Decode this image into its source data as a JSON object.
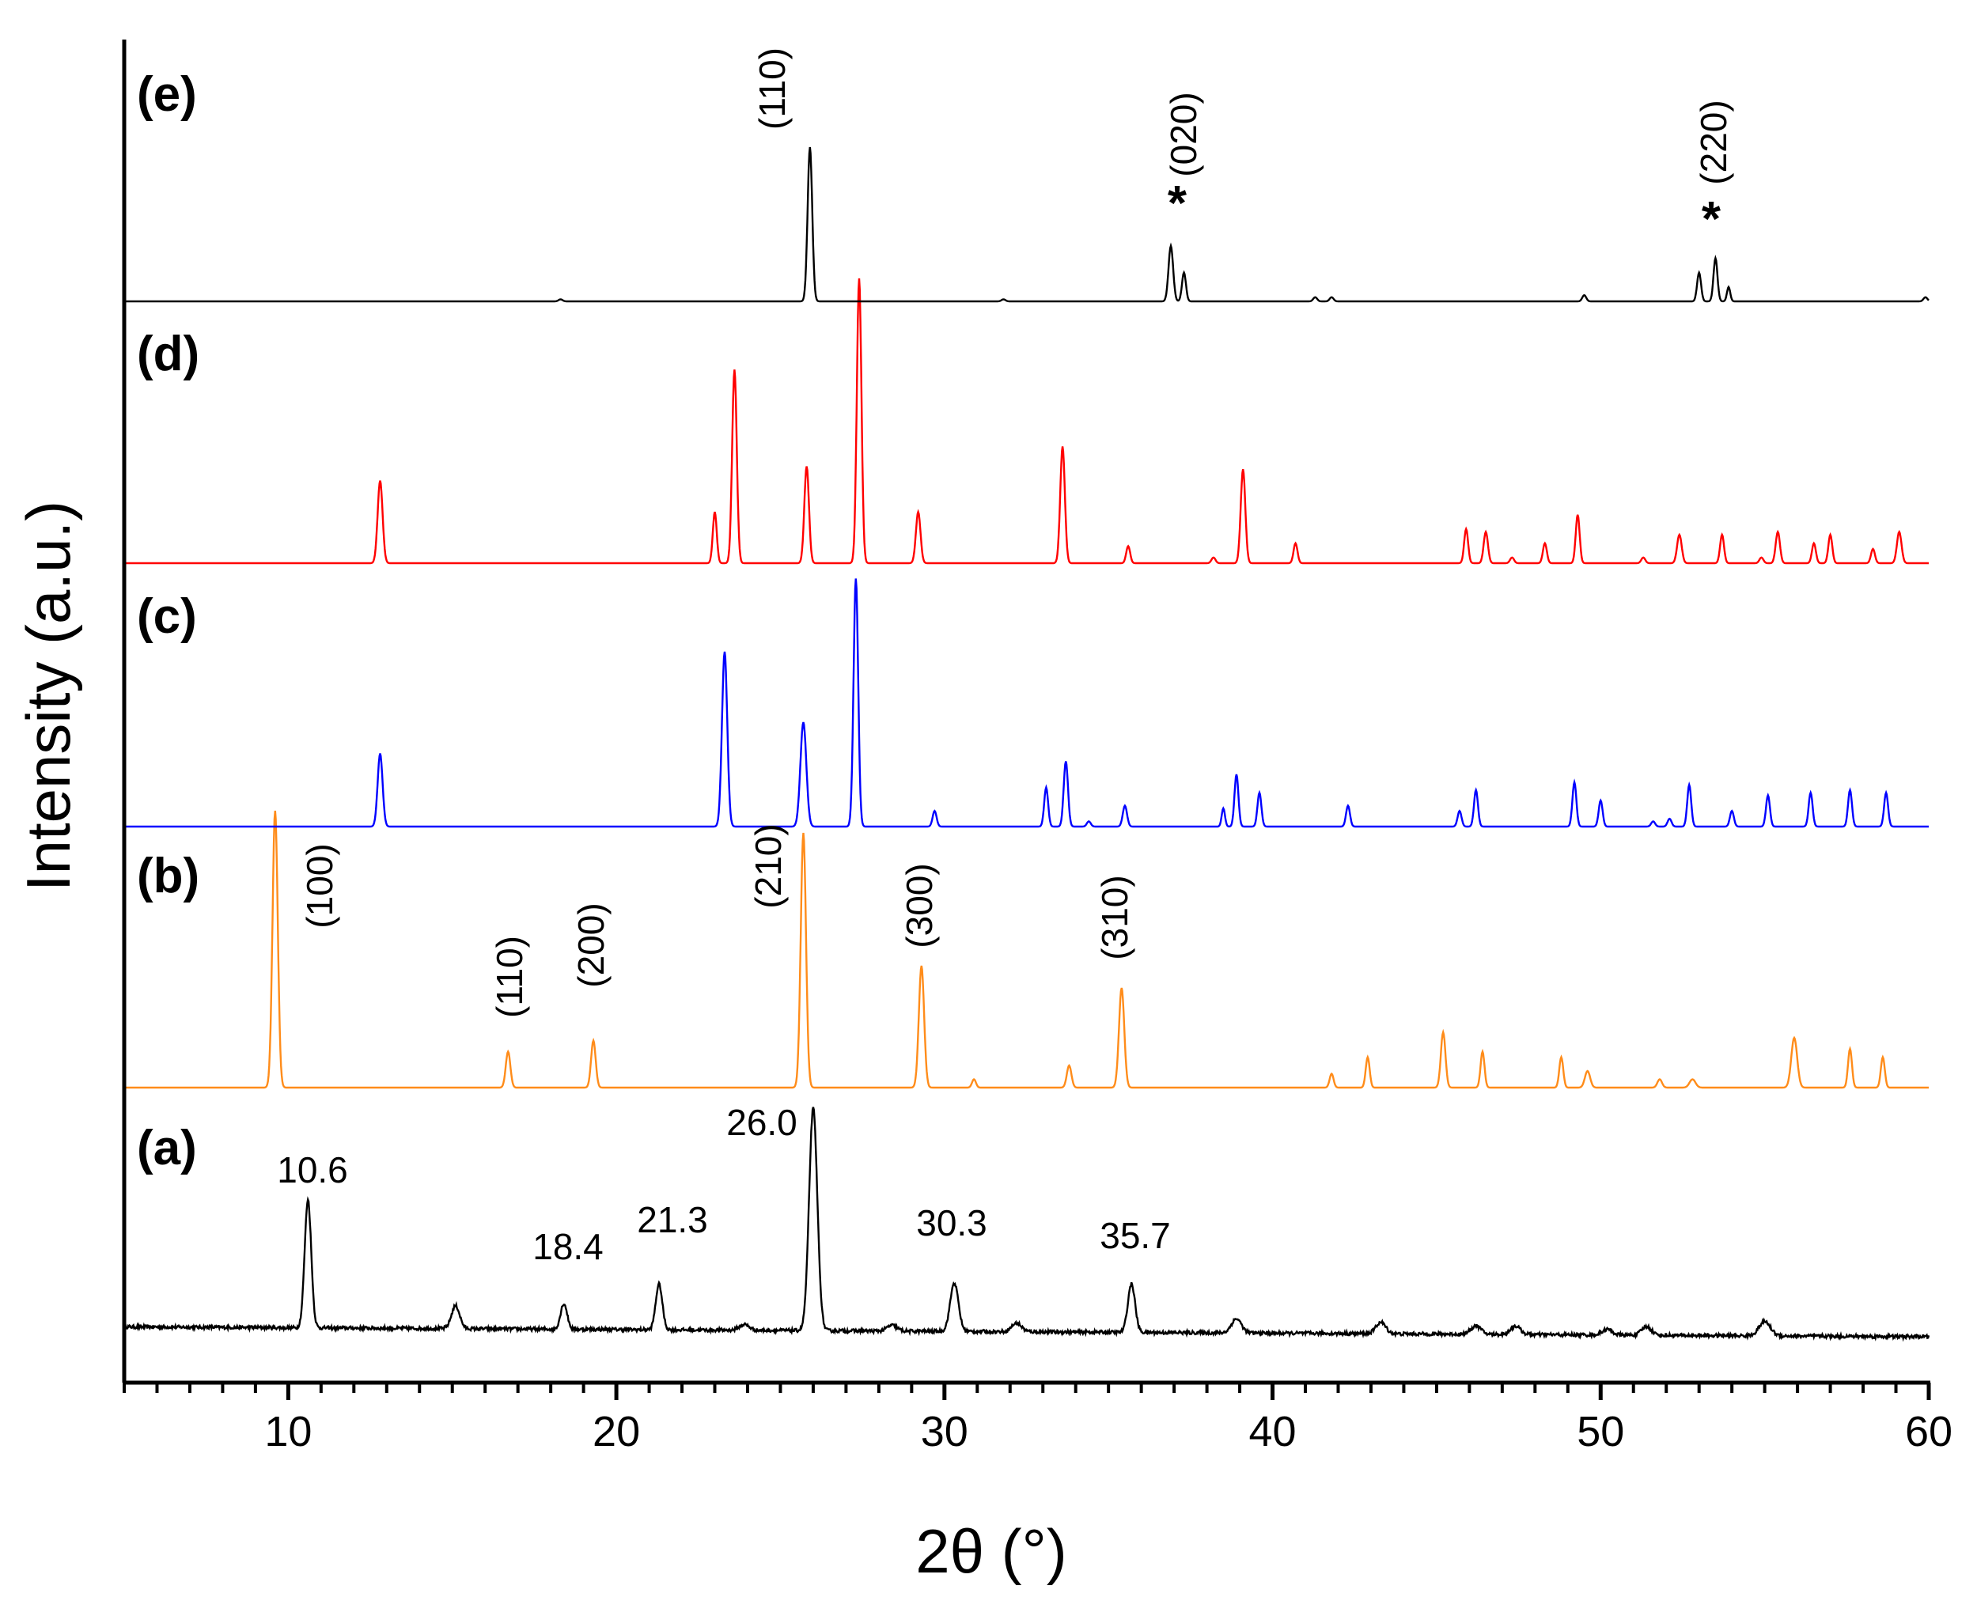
{
  "chart_data": {
    "type": "line",
    "xlabel": "2θ (°)",
    "ylabel": "Intensity (a.u.)",
    "xlim": [
      5,
      60
    ],
    "x_ticks": [
      "10",
      "20",
      "30",
      "40",
      "50",
      "60"
    ],
    "x_tick_values": [
      10,
      20,
      30,
      40,
      50,
      60
    ],
    "grid": false,
    "legend": "none",
    "series": [
      {
        "name": "(a)",
        "color": "#000000",
        "baseline": 0.0,
        "noise": 0.012,
        "peaks": [
          [
            10.6,
            0.45,
            0.2
          ],
          [
            15.1,
            0.08,
            0.25
          ],
          [
            18.4,
            0.09,
            0.2
          ],
          [
            21.3,
            0.16,
            0.2
          ],
          [
            23.9,
            0.02,
            0.3
          ],
          [
            26.0,
            0.78,
            0.25
          ],
          [
            28.4,
            0.02,
            0.3
          ],
          [
            30.3,
            0.17,
            0.25
          ],
          [
            32.2,
            0.03,
            0.3
          ],
          [
            35.7,
            0.17,
            0.22
          ],
          [
            38.9,
            0.05,
            0.3
          ],
          [
            43.3,
            0.04,
            0.3
          ],
          [
            46.2,
            0.03,
            0.3
          ],
          [
            47.4,
            0.03,
            0.3
          ],
          [
            50.2,
            0.02,
            0.3
          ],
          [
            51.4,
            0.03,
            0.3
          ],
          [
            55.0,
            0.05,
            0.35
          ]
        ],
        "annotations": [
          {
            "x": 10.6,
            "text": "10.6"
          },
          {
            "x": 18.4,
            "text": "18.4"
          },
          {
            "x": 21.3,
            "text": "21.3"
          },
          {
            "x": 26.0,
            "text": "26.0"
          },
          {
            "x": 30.3,
            "text": "30.3"
          },
          {
            "x": 35.7,
            "text": "35.7"
          }
        ]
      },
      {
        "name": "(b)",
        "color": "#ff8c1a",
        "baseline": 0.0,
        "noise": 0,
        "peaks": [
          [
            9.6,
            1.0,
            0.16
          ],
          [
            16.7,
            0.13,
            0.14
          ],
          [
            19.3,
            0.17,
            0.14
          ],
          [
            25.7,
            0.92,
            0.16
          ],
          [
            29.3,
            0.44,
            0.16
          ],
          [
            30.9,
            0.03,
            0.12
          ],
          [
            33.8,
            0.08,
            0.14
          ],
          [
            35.4,
            0.36,
            0.16
          ],
          [
            41.8,
            0.05,
            0.12
          ],
          [
            42.9,
            0.11,
            0.12
          ],
          [
            45.2,
            0.2,
            0.14
          ],
          [
            46.4,
            0.13,
            0.12
          ],
          [
            48.8,
            0.11,
            0.12
          ],
          [
            49.6,
            0.06,
            0.16
          ],
          [
            51.8,
            0.03,
            0.14
          ],
          [
            52.8,
            0.03,
            0.18
          ],
          [
            55.9,
            0.18,
            0.18
          ],
          [
            57.6,
            0.14,
            0.12
          ],
          [
            58.6,
            0.11,
            0.12
          ]
        ],
        "annotations": [
          {
            "x": 9.6,
            "text": "(100)"
          },
          {
            "x": 16.7,
            "text": "(110)"
          },
          {
            "x": 19.3,
            "text": "(200)"
          },
          {
            "x": 25.7,
            "text": "(210)"
          },
          {
            "x": 29.3,
            "text": "(300)"
          },
          {
            "x": 35.4,
            "text": "(310)"
          }
        ]
      },
      {
        "name": "(c)",
        "color": "#0000ff",
        "baseline": 0.0,
        "noise": 0,
        "peaks": [
          [
            12.8,
            0.28,
            0.15
          ],
          [
            23.3,
            0.67,
            0.16
          ],
          [
            25.7,
            0.4,
            0.18
          ],
          [
            27.3,
            0.95,
            0.14
          ],
          [
            29.7,
            0.06,
            0.12
          ],
          [
            33.1,
            0.15,
            0.12
          ],
          [
            33.7,
            0.25,
            0.13
          ],
          [
            34.4,
            0.02,
            0.12
          ],
          [
            35.5,
            0.08,
            0.13
          ],
          [
            38.5,
            0.07,
            0.1
          ],
          [
            38.9,
            0.2,
            0.12
          ],
          [
            39.6,
            0.13,
            0.12
          ],
          [
            42.3,
            0.08,
            0.12
          ],
          [
            45.7,
            0.06,
            0.12
          ],
          [
            46.2,
            0.14,
            0.12
          ],
          [
            49.2,
            0.17,
            0.12
          ],
          [
            50.0,
            0.1,
            0.12
          ],
          [
            51.6,
            0.02,
            0.12
          ],
          [
            52.1,
            0.03,
            0.12
          ],
          [
            52.7,
            0.16,
            0.12
          ],
          [
            54.0,
            0.06,
            0.12
          ],
          [
            55.1,
            0.12,
            0.12
          ],
          [
            56.4,
            0.13,
            0.12
          ],
          [
            57.6,
            0.14,
            0.12
          ],
          [
            58.7,
            0.13,
            0.12
          ]
        ],
        "annotations": []
      },
      {
        "name": "(d)",
        "color": "#ff0000",
        "baseline": 0.0,
        "noise": 0,
        "peaks": [
          [
            12.8,
            0.29,
            0.15
          ],
          [
            23.0,
            0.18,
            0.12
          ],
          [
            23.6,
            0.68,
            0.14
          ],
          [
            25.8,
            0.34,
            0.14
          ],
          [
            27.4,
            1.0,
            0.14
          ],
          [
            29.2,
            0.18,
            0.14
          ],
          [
            33.6,
            0.41,
            0.14
          ],
          [
            35.6,
            0.06,
            0.12
          ],
          [
            38.2,
            0.02,
            0.12
          ],
          [
            39.1,
            0.33,
            0.14
          ],
          [
            40.7,
            0.07,
            0.12
          ],
          [
            45.9,
            0.12,
            0.12
          ],
          [
            46.5,
            0.11,
            0.13
          ],
          [
            47.3,
            0.02,
            0.12
          ],
          [
            48.3,
            0.07,
            0.12
          ],
          [
            49.3,
            0.17,
            0.12
          ],
          [
            51.3,
            0.02,
            0.12
          ],
          [
            52.4,
            0.1,
            0.14
          ],
          [
            53.7,
            0.1,
            0.12
          ],
          [
            54.9,
            0.02,
            0.12
          ],
          [
            55.4,
            0.11,
            0.13
          ],
          [
            56.5,
            0.07,
            0.12
          ],
          [
            57.0,
            0.1,
            0.12
          ],
          [
            58.3,
            0.05,
            0.12
          ],
          [
            59.1,
            0.11,
            0.14
          ]
        ],
        "annotations": []
      },
      {
        "name": "(e)",
        "color": "#000000",
        "baseline": 0.0,
        "noise": 0,
        "peaks": [
          [
            18.3,
            0.01,
            0.12
          ],
          [
            25.9,
            0.75,
            0.14
          ],
          [
            31.8,
            0.01,
            0.12
          ],
          [
            36.9,
            0.27,
            0.14
          ],
          [
            37.3,
            0.14,
            0.12
          ],
          [
            41.3,
            0.02,
            0.12
          ],
          [
            41.8,
            0.02,
            0.12
          ],
          [
            49.5,
            0.03,
            0.12
          ],
          [
            53.0,
            0.14,
            0.12
          ],
          [
            53.5,
            0.21,
            0.12
          ],
          [
            53.9,
            0.07,
            0.1
          ],
          [
            59.9,
            0.02,
            0.12
          ]
        ],
        "annotations": [
          {
            "x": 25.9,
            "text": "(110)",
            "star": ""
          },
          {
            "x": 36.9,
            "text": "(020)",
            "star": "*"
          },
          {
            "x": 53.5,
            "text": "(220)",
            "star": "*"
          }
        ]
      }
    ]
  }
}
